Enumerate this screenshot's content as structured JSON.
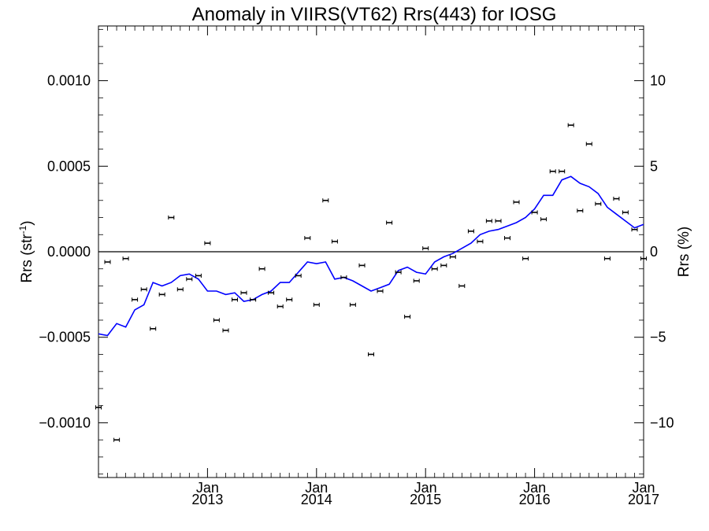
{
  "chart_data": {
    "type": "line",
    "title": "Anomaly in VIIRS(VT62) Rrs(443) for IOSG",
    "ylabel_left": "Rrs (str",
    "ylabel_left_sup": "-1",
    "ylabel_left_close": ")",
    "ylabel_right": "Rrs (%)",
    "xlim": [
      2012.0,
      2017.0
    ],
    "ylim_left": [
      -0.00132,
      0.00132
    ],
    "ylim_right": [
      -13.2,
      13.2
    ],
    "grid": false,
    "x_ticks": [
      {
        "value": 2013.0,
        "month": "Jan",
        "year": "2013"
      },
      {
        "value": 2014.0,
        "month": "Jan",
        "year": "2014"
      },
      {
        "value": 2015.0,
        "month": "Jan",
        "year": "2015"
      },
      {
        "value": 2016.0,
        "month": "Jan",
        "year": "2016"
      },
      {
        "value": 2017.0,
        "month": "Jan",
        "year": "2017"
      }
    ],
    "y_ticks_left": [
      {
        "value": 0.001,
        "label": "0.0010"
      },
      {
        "value": 0.0005,
        "label": "0.0005"
      },
      {
        "value": 0.0,
        "label": "0.0000"
      },
      {
        "value": -0.0005,
        "label": "−0.0005"
      },
      {
        "value": -0.001,
        "label": "−0.0010"
      }
    ],
    "y_ticks_right": [
      {
        "value": 10,
        "label": "10"
      },
      {
        "value": 5,
        "label": "5"
      },
      {
        "value": 0,
        "label": "0"
      },
      {
        "value": -5,
        "label": "−5"
      },
      {
        "value": -10,
        "label": "−10"
      }
    ],
    "zero_line": 0.0,
    "series": [
      {
        "kind": "points_with_errorbars",
        "color": "#000000",
        "x": [
          2012.0,
          2012.083,
          2012.167,
          2012.25,
          2012.333,
          2012.417,
          2012.5,
          2012.583,
          2012.667,
          2012.75,
          2012.833,
          2012.917,
          2013.0,
          2013.083,
          2013.167,
          2013.25,
          2013.333,
          2013.417,
          2013.5,
          2013.583,
          2013.667,
          2013.75,
          2013.833,
          2013.917,
          2014.0,
          2014.083,
          2014.167,
          2014.25,
          2014.333,
          2014.417,
          2014.5,
          2014.583,
          2014.667,
          2014.75,
          2014.833,
          2014.917,
          2015.0,
          2015.083,
          2015.167,
          2015.25,
          2015.333,
          2015.417,
          2015.5,
          2015.583,
          2015.667,
          2015.75,
          2015.833,
          2015.917,
          2016.0,
          2016.083,
          2016.167,
          2016.25,
          2016.333,
          2016.417,
          2016.5,
          2016.583,
          2016.667,
          2016.75,
          2016.833,
          2016.917,
          2017.0
        ],
        "y": [
          -0.00091,
          -6e-05,
          -0.0011,
          -4e-05,
          -0.00028,
          -0.00022,
          -0.00045,
          -0.00025,
          0.0002,
          -0.00022,
          -0.00016,
          -0.00014,
          5e-05,
          -0.0004,
          -0.00046,
          -0.00028,
          -0.00024,
          -0.00028,
          -0.0001,
          -0.00024,
          -0.00032,
          -0.00028,
          -0.00014,
          8e-05,
          -0.00031,
          0.0003,
          6e-05,
          -0.00015,
          -0.00031,
          -8e-05,
          -0.0006,
          -0.00023,
          0.00017,
          -0.00012,
          -0.00038,
          -0.00017,
          2e-05,
          -0.0001,
          -8e-05,
          -3e-05,
          -0.0002,
          0.00012,
          6e-05,
          0.00018,
          0.00018,
          8e-05,
          0.00029,
          -4e-05,
          0.00023,
          0.00019,
          0.00047,
          0.00047,
          0.00074,
          0.00024,
          0.00063,
          0.00028,
          -4e-05,
          0.00031,
          0.00023,
          0.00013,
          -4e-05
        ],
        "err": 5e-06
      },
      {
        "kind": "line",
        "color": "#0000ff",
        "x": [
          2012.0,
          2012.083,
          2012.167,
          2012.25,
          2012.333,
          2012.417,
          2012.5,
          2012.583,
          2012.667,
          2012.75,
          2012.833,
          2012.917,
          2013.0,
          2013.083,
          2013.167,
          2013.25,
          2013.333,
          2013.417,
          2013.5,
          2013.583,
          2013.667,
          2013.75,
          2013.833,
          2013.917,
          2014.0,
          2014.083,
          2014.167,
          2014.25,
          2014.333,
          2014.417,
          2014.5,
          2014.583,
          2014.667,
          2014.75,
          2014.833,
          2014.917,
          2015.0,
          2015.083,
          2015.167,
          2015.25,
          2015.333,
          2015.417,
          2015.5,
          2015.583,
          2015.667,
          2015.75,
          2015.833,
          2015.917,
          2016.0,
          2016.083,
          2016.167,
          2016.25,
          2016.333,
          2016.417,
          2016.5,
          2016.583,
          2016.667,
          2016.75,
          2016.833,
          2016.917,
          2017.0
        ],
        "y": [
          -0.00048,
          -0.00049,
          -0.00042,
          -0.00044,
          -0.00034,
          -0.00031,
          -0.00018,
          -0.0002,
          -0.00018,
          -0.00014,
          -0.00013,
          -0.00016,
          -0.00023,
          -0.00023,
          -0.00025,
          -0.00024,
          -0.00029,
          -0.00028,
          -0.00025,
          -0.00023,
          -0.00018,
          -0.00018,
          -0.00012,
          -6e-05,
          -7e-05,
          -6e-05,
          -0.00016,
          -0.00015,
          -0.00017,
          -0.0002,
          -0.00023,
          -0.00021,
          -0.00019,
          -0.00011,
          -9e-05,
          -0.00012,
          -0.00013,
          -6e-05,
          -3e-05,
          -1e-05,
          2e-05,
          5e-05,
          0.0001,
          0.00012,
          0.00013,
          0.00015,
          0.00017,
          0.0002,
          0.00025,
          0.00033,
          0.00033,
          0.00042,
          0.00044,
          0.0004,
          0.00038,
          0.00034,
          0.00026,
          0.00022,
          0.00018,
          0.00014,
          0.00016
        ]
      }
    ]
  }
}
